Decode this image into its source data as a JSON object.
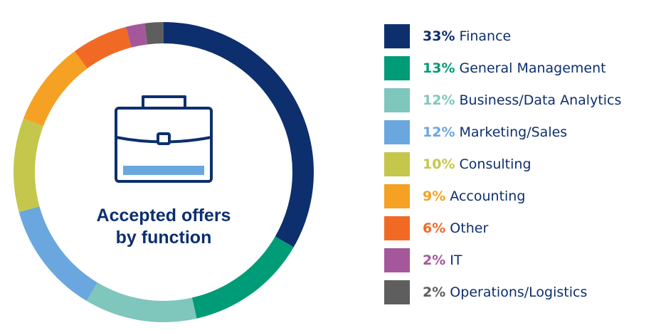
{
  "chart_data": {
    "type": "pie",
    "title": "Accepted offers by function",
    "title_lines": [
      "Accepted offers",
      "by function"
    ],
    "center_icon": "briefcase-icon",
    "slices": [
      {
        "label": "Finance",
        "value": 33,
        "pct_label": "33%",
        "color": "#0d2f6e"
      },
      {
        "label": "General Management",
        "value": 13,
        "pct_label": "13%",
        "color": "#009b77"
      },
      {
        "label": "Business/Data Analytics",
        "value": 12,
        "pct_label": "12%",
        "color": "#7fc6bc"
      },
      {
        "label": "Marketing/Sales",
        "value": 12,
        "pct_label": "12%",
        "color": "#6aa7de"
      },
      {
        "label": "Consulting",
        "value": 10,
        "pct_label": "10%",
        "color": "#c4c74c"
      },
      {
        "label": "Accounting",
        "value": 9,
        "pct_label": "9%",
        "color": "#f5a124"
      },
      {
        "label": "Other",
        "value": 6,
        "pct_label": "6%",
        "color": "#f06a26"
      },
      {
        "label": "IT",
        "value": 2,
        "pct_label": "2%",
        "color": "#a5579b"
      },
      {
        "label": "Operations/Logistics",
        "value": 2,
        "pct_label": "2%",
        "color": "#5e5e5e"
      }
    ],
    "legend_position": "right"
  }
}
